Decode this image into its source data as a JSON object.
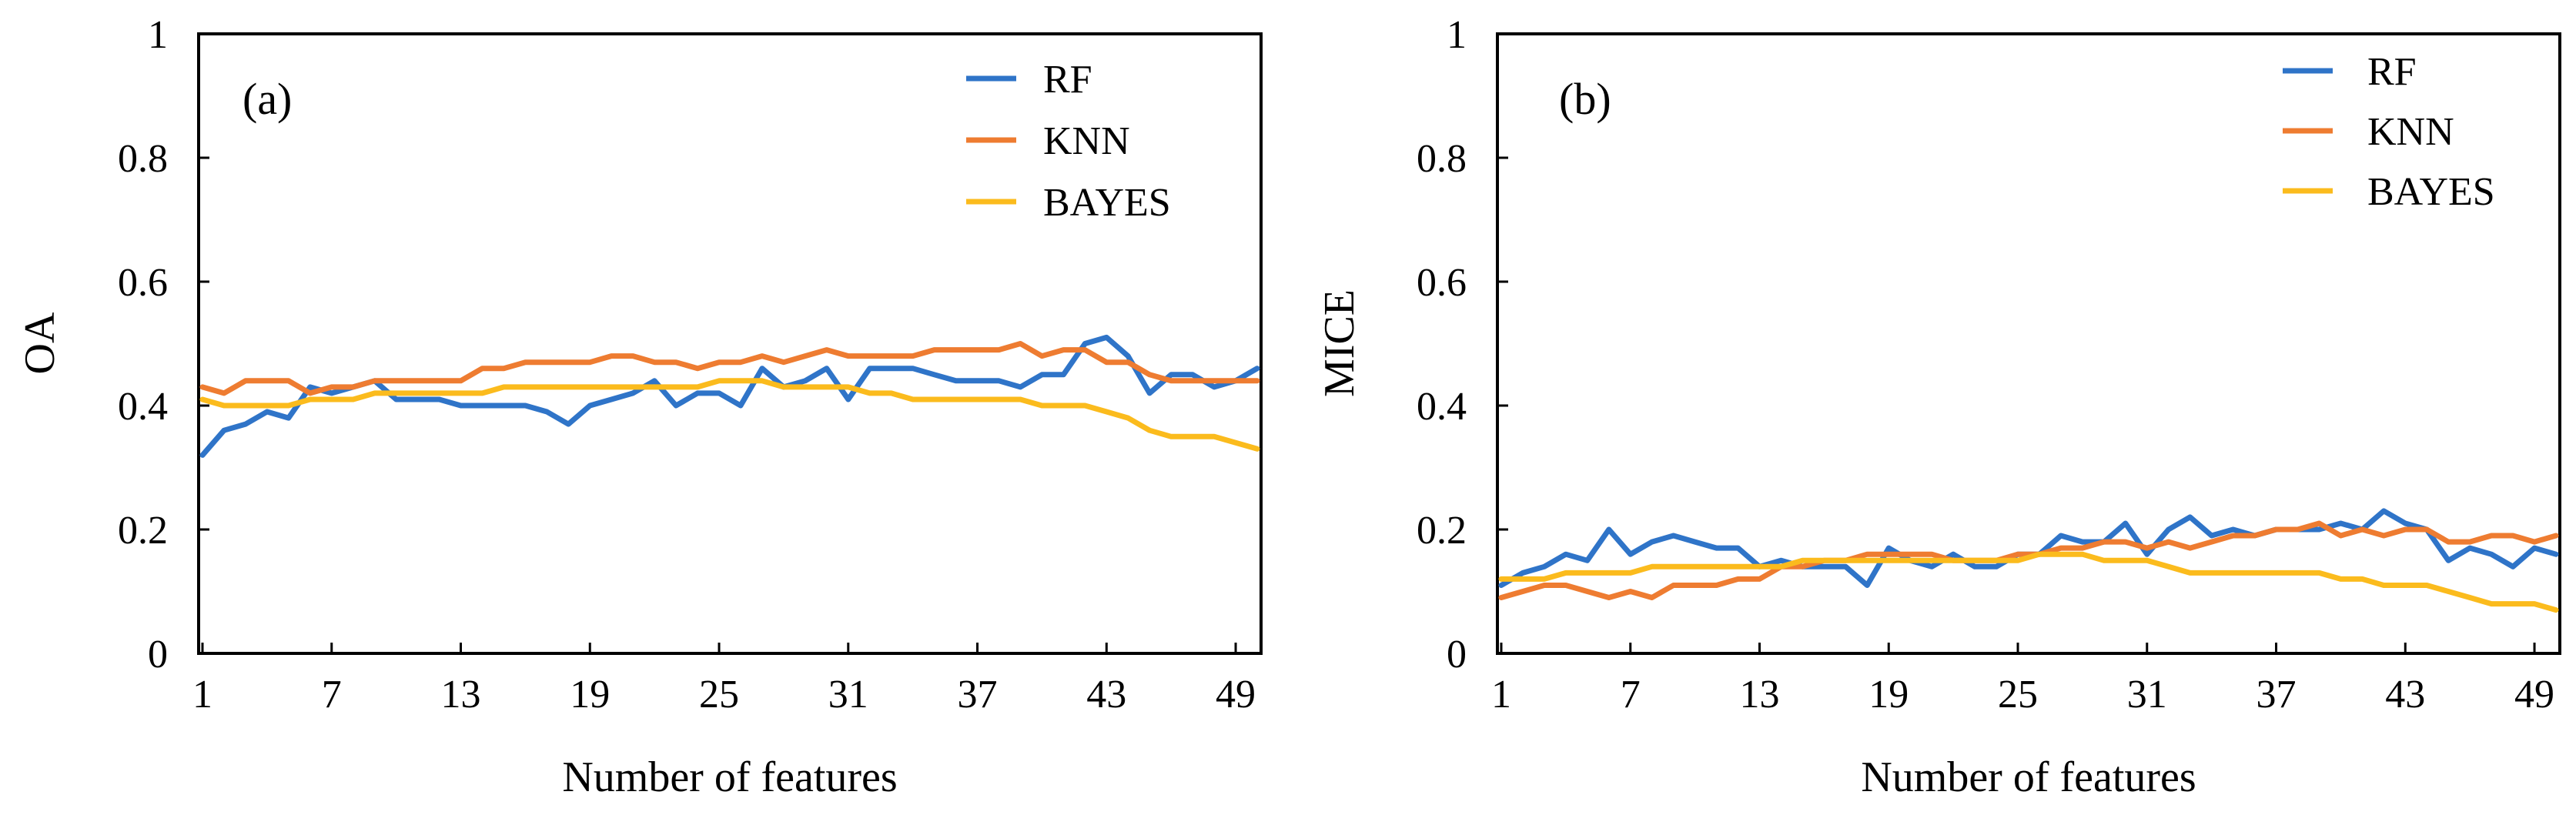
{
  "colors": {
    "RF": "#2F74C8",
    "KNN": "#EE7C31",
    "BAYES": "#FBBB1D"
  },
  "chart_data": [
    {
      "type": "line",
      "panel_label": "(a)",
      "xlabel": "Number of features",
      "ylabel": "OA",
      "x_ticks": [
        "1",
        "7",
        "13",
        "19",
        "25",
        "31",
        "37",
        "43",
        "49"
      ],
      "y_ticks": [
        "0",
        "0.2",
        "0.4",
        "0.6",
        "0.8",
        "1"
      ],
      "xlim": [
        1,
        50
      ],
      "ylim": [
        0,
        1
      ],
      "legend": "top-right",
      "grid": false,
      "series": [
        {
          "name": "RF",
          "values": [
            0.32,
            0.36,
            0.37,
            0.39,
            0.38,
            0.43,
            0.42,
            0.43,
            0.44,
            0.41,
            0.41,
            0.41,
            0.4,
            0.4,
            0.4,
            0.4,
            0.39,
            0.37,
            0.4,
            0.41,
            0.42,
            0.44,
            0.4,
            0.42,
            0.42,
            0.4,
            0.46,
            0.43,
            0.44,
            0.46,
            0.41,
            0.46,
            0.46,
            0.46,
            0.45,
            0.44,
            0.44,
            0.44,
            0.43,
            0.45,
            0.45,
            0.5,
            0.51,
            0.48,
            0.42,
            0.45,
            0.45,
            0.43,
            0.44,
            0.46
          ]
        },
        {
          "name": "KNN",
          "values": [
            0.43,
            0.42,
            0.44,
            0.44,
            0.44,
            0.42,
            0.43,
            0.43,
            0.44,
            0.44,
            0.44,
            0.44,
            0.44,
            0.46,
            0.46,
            0.47,
            0.47,
            0.47,
            0.47,
            0.48,
            0.48,
            0.47,
            0.47,
            0.46,
            0.47,
            0.47,
            0.48,
            0.47,
            0.48,
            0.49,
            0.48,
            0.48,
            0.48,
            0.48,
            0.49,
            0.49,
            0.49,
            0.49,
            0.5,
            0.48,
            0.49,
            0.49,
            0.47,
            0.47,
            0.45,
            0.44,
            0.44,
            0.44,
            0.44,
            0.44
          ]
        },
        {
          "name": "BAYES",
          "values": [
            0.41,
            0.4,
            0.4,
            0.4,
            0.4,
            0.41,
            0.41,
            0.41,
            0.42,
            0.42,
            0.42,
            0.42,
            0.42,
            0.42,
            0.43,
            0.43,
            0.43,
            0.43,
            0.43,
            0.43,
            0.43,
            0.43,
            0.43,
            0.43,
            0.44,
            0.44,
            0.44,
            0.43,
            0.43,
            0.43,
            0.43,
            0.42,
            0.42,
            0.41,
            0.41,
            0.41,
            0.41,
            0.41,
            0.41,
            0.4,
            0.4,
            0.4,
            0.39,
            0.38,
            0.36,
            0.35,
            0.35,
            0.35,
            0.34,
            0.33
          ]
        }
      ]
    },
    {
      "type": "line",
      "panel_label": "(b)",
      "xlabel": "Number of features",
      "ylabel": "MICE",
      "x_ticks": [
        "1",
        "7",
        "13",
        "19",
        "25",
        "31",
        "37",
        "43",
        "49"
      ],
      "y_ticks": [
        "0",
        "0.2",
        "0.4",
        "0.6",
        "0.8",
        "1"
      ],
      "xlim": [
        1,
        50
      ],
      "ylim": [
        0,
        1
      ],
      "legend": "top-right",
      "grid": false,
      "series": [
        {
          "name": "RF",
          "values": [
            0.11,
            0.13,
            0.14,
            0.16,
            0.15,
            0.2,
            0.16,
            0.18,
            0.19,
            0.18,
            0.17,
            0.17,
            0.14,
            0.15,
            0.14,
            0.14,
            0.14,
            0.11,
            0.17,
            0.15,
            0.14,
            0.16,
            0.14,
            0.14,
            0.16,
            0.16,
            0.19,
            0.18,
            0.18,
            0.21,
            0.16,
            0.2,
            0.22,
            0.19,
            0.2,
            0.19,
            0.2,
            0.2,
            0.2,
            0.21,
            0.2,
            0.23,
            0.21,
            0.2,
            0.15,
            0.17,
            0.16,
            0.14,
            0.17,
            0.16
          ]
        },
        {
          "name": "KNN",
          "values": [
            0.09,
            0.1,
            0.11,
            0.11,
            0.1,
            0.09,
            0.1,
            0.09,
            0.11,
            0.11,
            0.11,
            0.12,
            0.12,
            0.14,
            0.14,
            0.15,
            0.15,
            0.16,
            0.16,
            0.16,
            0.16,
            0.15,
            0.15,
            0.15,
            0.16,
            0.16,
            0.17,
            0.17,
            0.18,
            0.18,
            0.17,
            0.18,
            0.17,
            0.18,
            0.19,
            0.19,
            0.2,
            0.2,
            0.21,
            0.19,
            0.2,
            0.19,
            0.2,
            0.2,
            0.18,
            0.18,
            0.19,
            0.19,
            0.18,
            0.19
          ]
        },
        {
          "name": "BAYES",
          "values": [
            0.12,
            0.12,
            0.12,
            0.13,
            0.13,
            0.13,
            0.13,
            0.14,
            0.14,
            0.14,
            0.14,
            0.14,
            0.14,
            0.14,
            0.15,
            0.15,
            0.15,
            0.15,
            0.15,
            0.15,
            0.15,
            0.15,
            0.15,
            0.15,
            0.15,
            0.16,
            0.16,
            0.16,
            0.15,
            0.15,
            0.15,
            0.14,
            0.13,
            0.13,
            0.13,
            0.13,
            0.13,
            0.13,
            0.13,
            0.12,
            0.12,
            0.11,
            0.11,
            0.11,
            0.1,
            0.09,
            0.08,
            0.08,
            0.08,
            0.07
          ]
        }
      ]
    }
  ]
}
